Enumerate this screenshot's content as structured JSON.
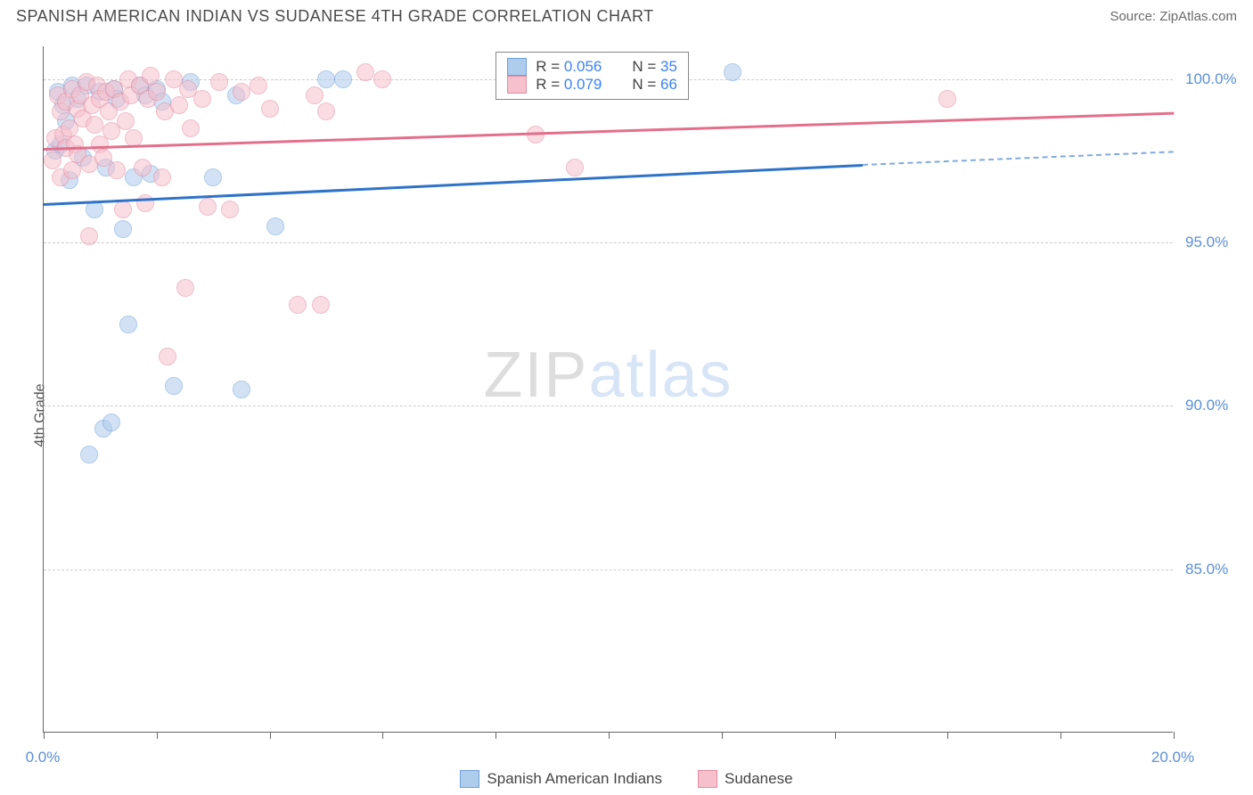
{
  "header": {
    "title": "SPANISH AMERICAN INDIAN VS SUDANESE 4TH GRADE CORRELATION CHART",
    "source": "Source: ZipAtlas.com"
  },
  "chart": {
    "type": "scatter",
    "ylabel": "4th Grade",
    "xlim": [
      0,
      20
    ],
    "ylim": [
      80,
      101
    ],
    "ytick_values": [
      85,
      90,
      95,
      100
    ],
    "ytick_labels": [
      "85.0%",
      "90.0%",
      "95.0%",
      "100.0%"
    ],
    "xtick_values": [
      0,
      2,
      4,
      6,
      8,
      10,
      12,
      14,
      16,
      18,
      20
    ],
    "xtick_labels_shown": {
      "0": "0.0%",
      "20": "20.0%"
    },
    "grid_color": "#cccccc",
    "axis_color": "#666666",
    "background_color": "#ffffff",
    "ylabel_color": "#555555",
    "tick_label_color": "#5b8fd6",
    "marker_radius": 10,
    "marker_opacity": 0.55,
    "series": [
      {
        "name": "Spanish American Indians",
        "fill": "#aeccec",
        "stroke": "#6fa0d8",
        "trend_color": "#2f73c9",
        "r_value": "0.056",
        "n_value": "35",
        "trend": {
          "x1": 0,
          "y1": 96.2,
          "x2_solid": 14.5,
          "y2_solid": 97.4,
          "x2_dash": 20,
          "y2_dash": 97.8
        },
        "points": [
          [
            0.2,
            97.8
          ],
          [
            0.25,
            99.6
          ],
          [
            0.3,
            98.0
          ],
          [
            0.35,
            99.2
          ],
          [
            0.4,
            98.7
          ],
          [
            0.45,
            96.9
          ],
          [
            0.5,
            99.8
          ],
          [
            0.6,
            99.4
          ],
          [
            0.7,
            97.6
          ],
          [
            0.75,
            99.8
          ],
          [
            0.8,
            88.5
          ],
          [
            0.9,
            96.0
          ],
          [
            1.0,
            99.6
          ],
          [
            1.05,
            89.3
          ],
          [
            1.1,
            97.3
          ],
          [
            1.2,
            89.5
          ],
          [
            1.25,
            99.7
          ],
          [
            1.3,
            99.4
          ],
          [
            1.4,
            95.4
          ],
          [
            1.5,
            92.5
          ],
          [
            1.6,
            97.0
          ],
          [
            1.7,
            99.8
          ],
          [
            1.8,
            99.5
          ],
          [
            1.9,
            97.1
          ],
          [
            2.0,
            99.7
          ],
          [
            2.1,
            99.3
          ],
          [
            2.3,
            90.6
          ],
          [
            2.6,
            99.9
          ],
          [
            3.0,
            97.0
          ],
          [
            3.4,
            99.5
          ],
          [
            3.5,
            90.5
          ],
          [
            4.1,
            95.5
          ],
          [
            5.0,
            100.0
          ],
          [
            5.3,
            100.0
          ],
          [
            12.2,
            100.2
          ]
        ]
      },
      {
        "name": "Sudanese",
        "fill": "#f6c0cd",
        "stroke": "#e38ba0",
        "trend_color": "#e36f8c",
        "r_value": "0.079",
        "n_value": "66",
        "trend": {
          "x1": 0,
          "y1": 97.9,
          "x2_solid": 20,
          "y2_solid": 99.0,
          "x2_dash": 20,
          "y2_dash": 99.0
        },
        "points": [
          [
            0.15,
            97.5
          ],
          [
            0.2,
            98.2
          ],
          [
            0.25,
            99.5
          ],
          [
            0.3,
            97.0
          ],
          [
            0.3,
            99.0
          ],
          [
            0.35,
            98.3
          ],
          [
            0.4,
            97.9
          ],
          [
            0.4,
            99.3
          ],
          [
            0.45,
            98.5
          ],
          [
            0.5,
            97.2
          ],
          [
            0.5,
            99.7
          ],
          [
            0.55,
            98.0
          ],
          [
            0.6,
            99.1
          ],
          [
            0.6,
            97.7
          ],
          [
            0.65,
            99.5
          ],
          [
            0.7,
            98.8
          ],
          [
            0.75,
            99.9
          ],
          [
            0.8,
            97.4
          ],
          [
            0.8,
            95.2
          ],
          [
            0.85,
            99.2
          ],
          [
            0.9,
            98.6
          ],
          [
            0.95,
            99.8
          ],
          [
            1.0,
            98.0
          ],
          [
            1.0,
            99.4
          ],
          [
            1.05,
            97.6
          ],
          [
            1.1,
            99.6
          ],
          [
            1.15,
            99.0
          ],
          [
            1.2,
            98.4
          ],
          [
            1.25,
            99.7
          ],
          [
            1.3,
            97.2
          ],
          [
            1.35,
            99.3
          ],
          [
            1.4,
            96.0
          ],
          [
            1.45,
            98.7
          ],
          [
            1.5,
            100.0
          ],
          [
            1.55,
            99.5
          ],
          [
            1.6,
            98.2
          ],
          [
            1.7,
            99.8
          ],
          [
            1.75,
            97.3
          ],
          [
            1.8,
            96.2
          ],
          [
            1.85,
            99.4
          ],
          [
            1.9,
            100.1
          ],
          [
            2.0,
            99.6
          ],
          [
            2.1,
            97.0
          ],
          [
            2.15,
            99.0
          ],
          [
            2.2,
            91.5
          ],
          [
            2.3,
            100.0
          ],
          [
            2.4,
            99.2
          ],
          [
            2.5,
            93.6
          ],
          [
            2.55,
            99.7
          ],
          [
            2.6,
            98.5
          ],
          [
            2.8,
            99.4
          ],
          [
            2.9,
            96.1
          ],
          [
            3.1,
            99.9
          ],
          [
            3.3,
            96.0
          ],
          [
            3.5,
            99.6
          ],
          [
            3.8,
            99.8
          ],
          [
            4.0,
            99.1
          ],
          [
            4.5,
            93.1
          ],
          [
            4.8,
            99.5
          ],
          [
            4.9,
            93.1
          ],
          [
            5.0,
            99.0
          ],
          [
            5.7,
            100.2
          ],
          [
            6.0,
            100.0
          ],
          [
            8.7,
            98.3
          ],
          [
            9.4,
            97.3
          ],
          [
            16.0,
            99.4
          ]
        ]
      }
    ]
  },
  "legend_box": {
    "border_color": "#888888",
    "r_label": "R =",
    "n_label": "N ="
  },
  "bottom_legend": {
    "items": [
      "Spanish American Indians",
      "Sudanese"
    ]
  },
  "watermark": {
    "zip": "ZIP",
    "atlas": "atlas"
  }
}
